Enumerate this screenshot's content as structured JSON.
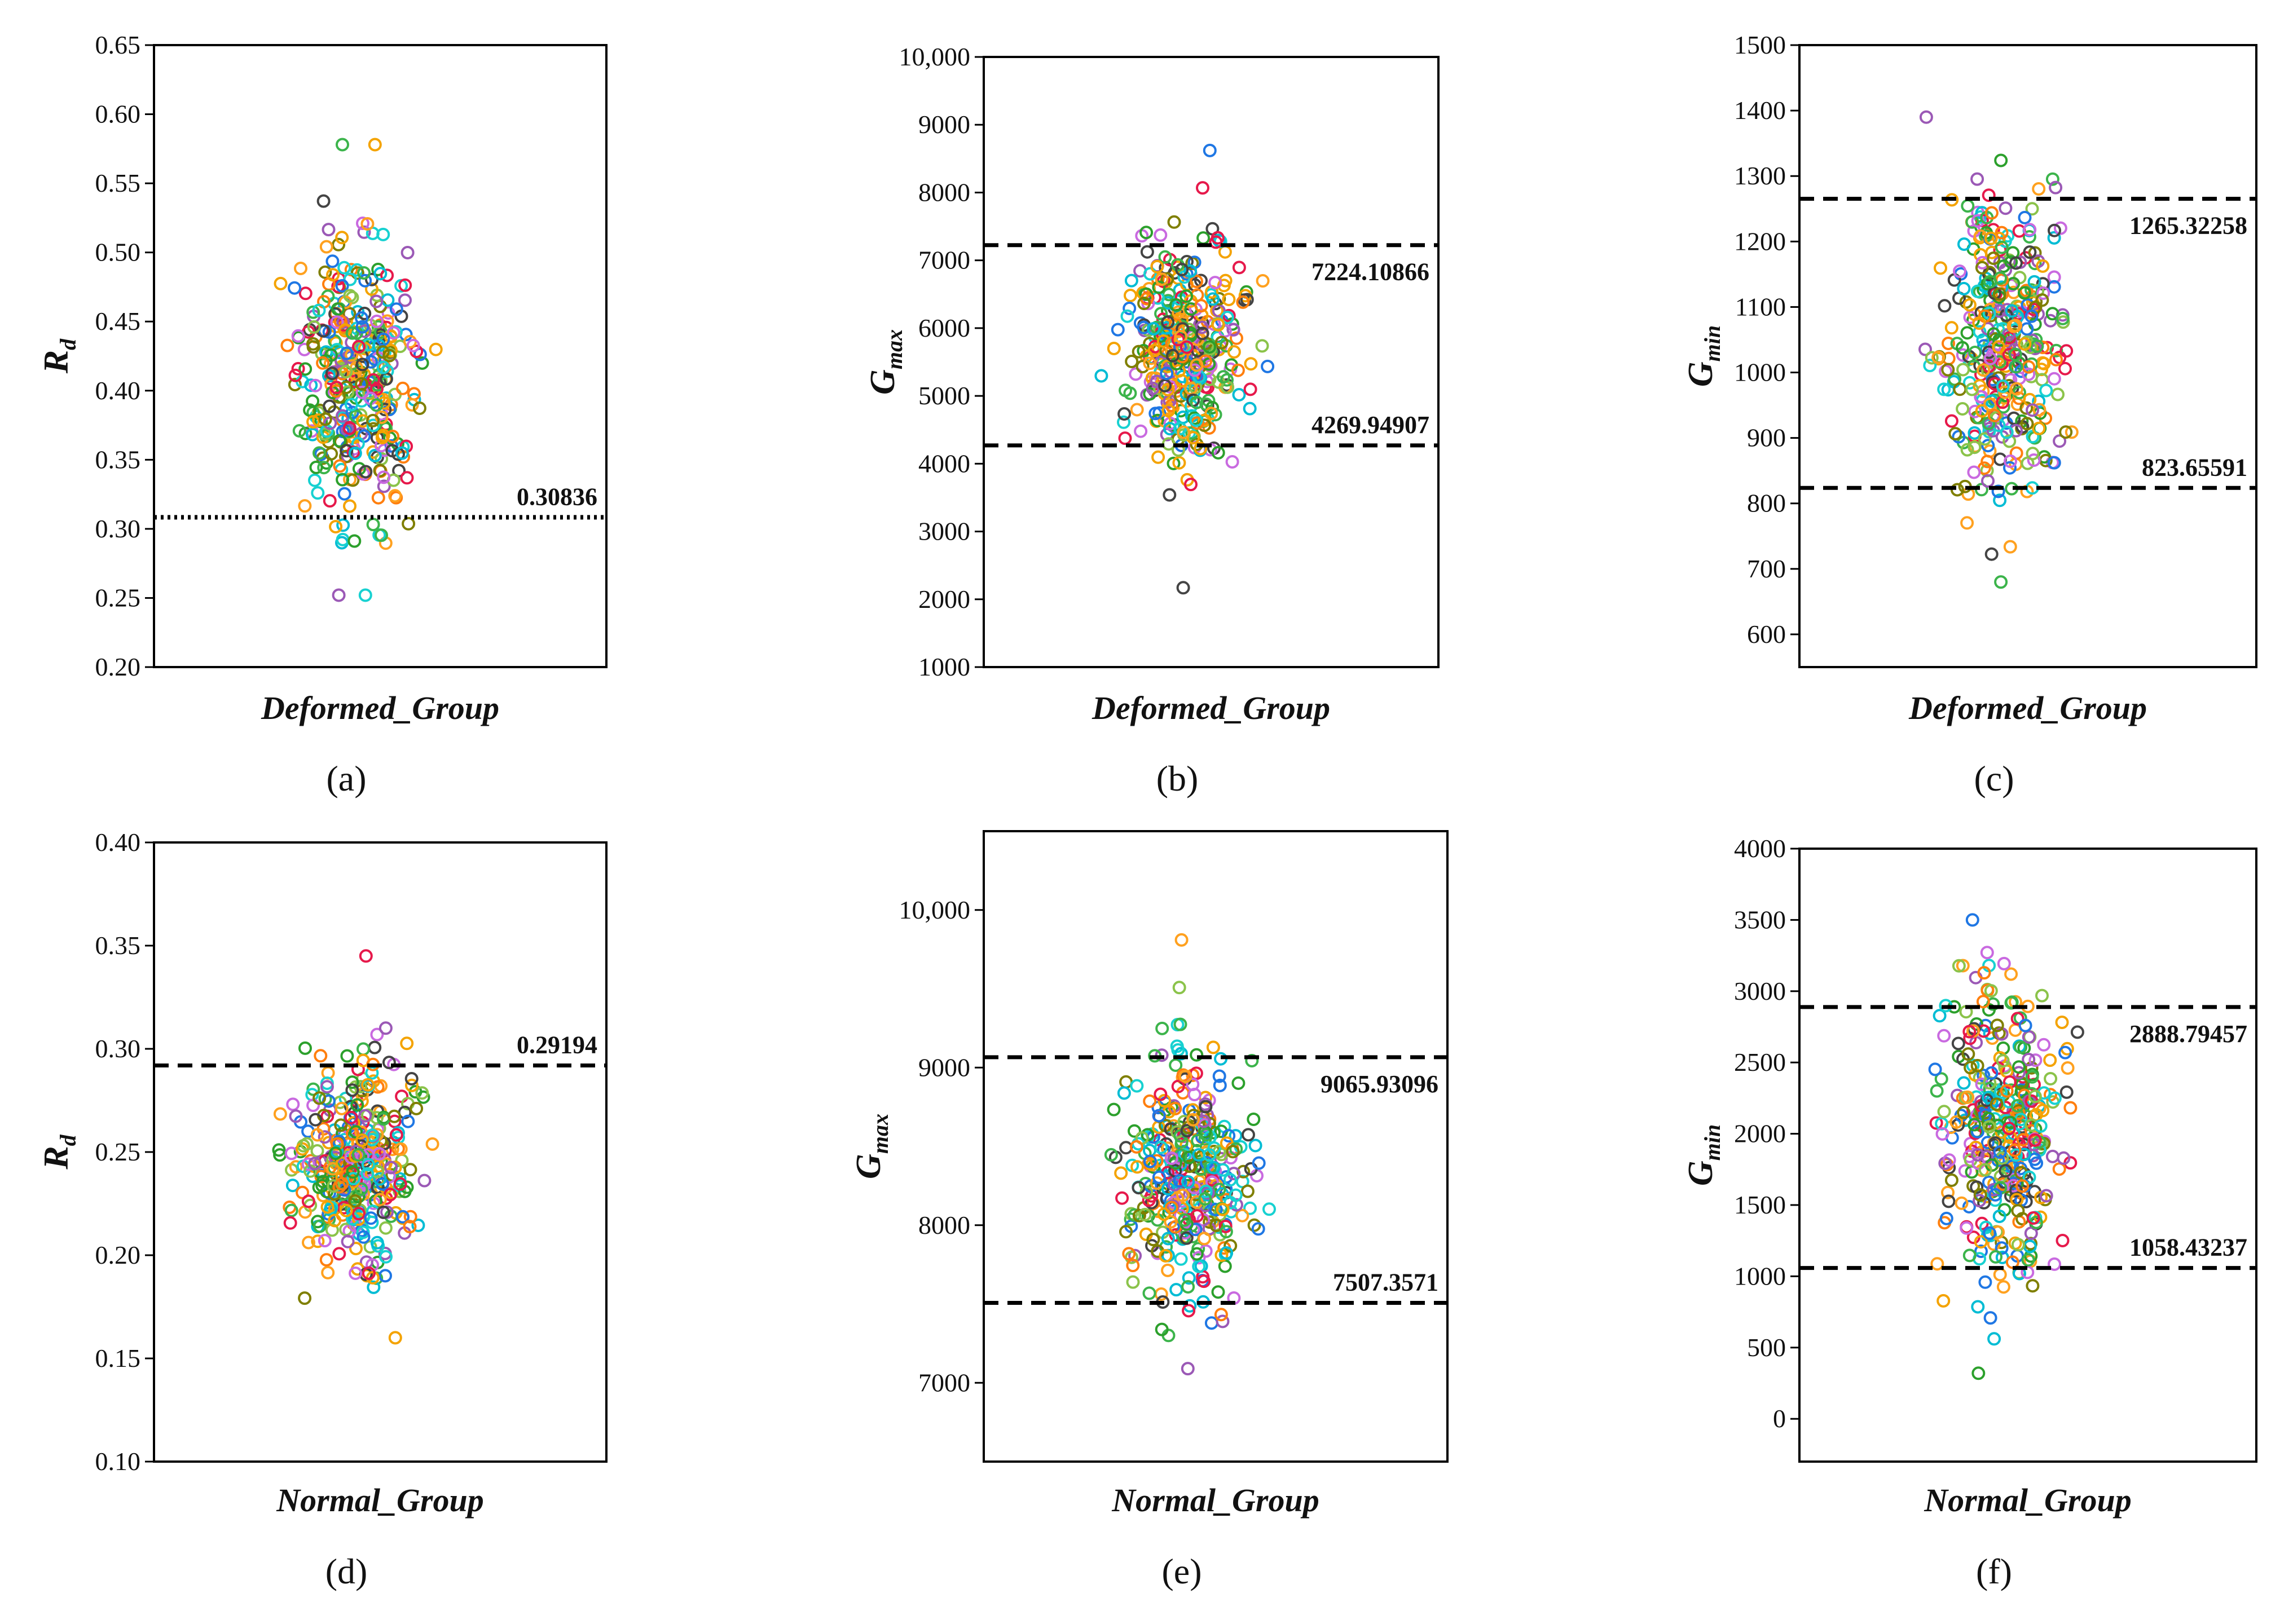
{
  "figure": {
    "palette": [
      "#e6194b",
      "#3cb44b",
      "#ffa11f",
      "#1f77e4",
      "#9b59b6",
      "#17d1d1",
      "#c96ae0",
      "#7f7f00",
      "#ff7f0e",
      "#2ca02c",
      "#444444",
      "#00bcd4",
      "#f4a300",
      "#8bc34a"
    ]
  },
  "chart_data": [
    {
      "type": "scatter",
      "panel": "(a)",
      "title": "",
      "xlabel": "Deformed_Group",
      "ylabel": {
        "main": "R",
        "sub": "d"
      },
      "ylim": [
        0.2,
        0.65
      ],
      "yticks": [
        0.2,
        0.25,
        0.3,
        0.35,
        0.4,
        0.45,
        0.5,
        0.55,
        0.6,
        0.65
      ],
      "ytick_labels": [
        "0.20",
        "0.25",
        "0.30",
        "0.35",
        "0.40",
        "0.45",
        "0.50",
        "0.55",
        "0.60",
        "0.65"
      ],
      "thresholds": [
        {
          "value": 0.30836,
          "label": "0.30836",
          "style": "dotted",
          "label_side": "above"
        }
      ],
      "distribution": {
        "mean": 0.41,
        "sd": 0.052,
        "min": 0.252,
        "max": 0.578,
        "n": 380,
        "seed": 11
      }
    },
    {
      "type": "scatter",
      "panel": "(b)",
      "title": "",
      "xlabel": "Deformed_Group",
      "ylabel": {
        "main": "G",
        "sub": "max"
      },
      "ylim": [
        1000,
        10000
      ],
      "yticks": [
        1000,
        2000,
        3000,
        4000,
        5000,
        6000,
        7000,
        8000,
        9000,
        10000
      ],
      "ytick_labels": [
        "1000",
        "2000",
        "3000",
        "4000",
        "5000",
        "6000",
        "7000",
        "8000",
        "9000",
        "10,000"
      ],
      "thresholds": [
        {
          "value": 7224.10866,
          "label": "7224.10866",
          "style": "dashed",
          "label_side": "below"
        },
        {
          "value": 4269.94907,
          "label": "4269.94907",
          "style": "dashed",
          "label_side": "above"
        }
      ],
      "distribution": {
        "mean": 5750,
        "sd": 740,
        "min": 2170,
        "max": 8620,
        "n": 380,
        "seed": 23
      }
    },
    {
      "type": "scatter",
      "panel": "(c)",
      "title": "",
      "xlabel": "Deformed_Group",
      "ylabel": {
        "main": "G",
        "sub": "min"
      },
      "ylim": [
        550,
        1500
      ],
      "yticks": [
        600,
        700,
        800,
        900,
        1000,
        1100,
        1200,
        1300,
        1400,
        1500
      ],
      "ytick_labels": [
        "600",
        "700",
        "800",
        "900",
        "1000",
        "1100",
        "1200",
        "1300",
        "1400",
        "1500"
      ],
      "thresholds": [
        {
          "value": 1265.32258,
          "label": "1265.32258",
          "style": "dashed",
          "label_side": "below"
        },
        {
          "value": 823.65591,
          "label": "823.65591",
          "style": "dashed",
          "label_side": "above"
        }
      ],
      "distribution": {
        "mean": 1045,
        "sd": 110,
        "min": 680,
        "max": 1390,
        "n": 380,
        "seed": 37
      }
    },
    {
      "type": "scatter",
      "panel": "(d)",
      "title": "",
      "xlabel": "Normal_Group",
      "ylabel": {
        "main": "R",
        "sub": "d"
      },
      "ylim": [
        0.1,
        0.4
      ],
      "yticks": [
        0.1,
        0.15,
        0.2,
        0.25,
        0.3,
        0.35,
        0.4
      ],
      "ytick_labels": [
        "0.10",
        "0.15",
        "0.20",
        "0.25",
        "0.30",
        "0.35",
        "0.40"
      ],
      "thresholds": [
        {
          "value": 0.29194,
          "label": "0.29194",
          "style": "dashed",
          "label_side": "above"
        }
      ],
      "distribution": {
        "mean": 0.243,
        "sd": 0.025,
        "min": 0.16,
        "max": 0.345,
        "n": 380,
        "seed": 41
      }
    },
    {
      "type": "scatter",
      "panel": "(e)",
      "title": "",
      "xlabel": "Normal_Group",
      "ylabel": {
        "main": "G",
        "sub": "max"
      },
      "ylim": [
        6500,
        10500
      ],
      "yticks": [
        7000,
        8000,
        9000,
        10000
      ],
      "ytick_labels": [
        "7000",
        "8000",
        "9000",
        "10,000"
      ],
      "thresholds": [
        {
          "value": 9065.93096,
          "label": "9065.93096",
          "style": "dashed",
          "label_side": "below"
        },
        {
          "value": 7507.3571,
          "label": "7507.3571",
          "style": "dashed",
          "label_side": "above"
        }
      ],
      "distribution": {
        "mean": 8290,
        "sd": 390,
        "min": 7090,
        "max": 9810,
        "n": 380,
        "seed": 53
      }
    },
    {
      "type": "scatter",
      "panel": "(f)",
      "title": "",
      "xlabel": "Normal_Group",
      "ylabel": {
        "main": "G",
        "sub": "min"
      },
      "ylim": [
        -300,
        4000
      ],
      "yticks": [
        0,
        500,
        1000,
        1500,
        2000,
        2500,
        3000,
        3500,
        4000
      ],
      "ytick_labels": [
        "0",
        "500",
        "1000",
        "1500",
        "2000",
        "2500",
        "3000",
        "3500",
        "4000"
      ],
      "thresholds": [
        {
          "value": 2888.79457,
          "label": "2888.79457",
          "style": "dashed",
          "label_side": "below"
        },
        {
          "value": 1058.43237,
          "label": "1058.43237",
          "style": "dashed",
          "label_side": "above"
        }
      ],
      "distribution": {
        "mean": 1960,
        "sd": 460,
        "min": 320,
        "max": 3500,
        "n": 380,
        "seed": 67
      }
    }
  ]
}
